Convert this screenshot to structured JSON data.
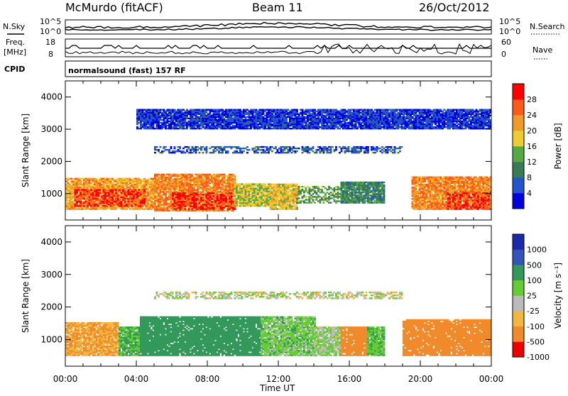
{
  "header": {
    "station": "McMurdo (fitACF)",
    "beam": "Beam 11",
    "date": "26/Oct/2012"
  },
  "top_panels": {
    "nsky_label": "N.Sky",
    "nsearch_label": "N.Search",
    "noise_ticks": [
      "10^5",
      "10^0"
    ],
    "freq_label_line1": "Freq.",
    "freq_label_line2": "[MHz]",
    "freq_ticks": [
      "18",
      "8"
    ],
    "nave_label": "Nave",
    "nave_ticks": [
      "60",
      "0"
    ],
    "cpid_label": "CPID",
    "cpid_text": "normalsound (fast) 157 RF"
  },
  "chart_data": [
    {
      "type": "heatmap",
      "title": "",
      "xlabel": "Time UT",
      "ylabel": "Slant Range [km]",
      "x_ticks": [
        "00:00",
        "04:00",
        "08:00",
        "12:00",
        "16:00",
        "20:00",
        "00:00"
      ],
      "y_ticks": [
        "1000",
        "2000",
        "3000",
        "4000"
      ],
      "xlim_hours": [
        0,
        24
      ],
      "ylim_km": [
        180,
        4500
      ],
      "colorbar": {
        "label": "Power [dB]",
        "ticks": [
          "28",
          "24",
          "20",
          "16",
          "12",
          "8",
          "4"
        ],
        "range": [
          0,
          30
        ],
        "colors": [
          "#0000dd",
          "#2255cc",
          "#3a7a55",
          "#55aa44",
          "#eecc33",
          "#f09a2a",
          "#ff5a1a",
          "#ff0000"
        ]
      },
      "bands": [
        {
          "t0": 0.0,
          "t1": 5.0,
          "r0": 500,
          "r1": 1450,
          "value": 20
        },
        {
          "t0": 0.5,
          "t1": 4.5,
          "r0": 600,
          "r1": 1100,
          "value": 27
        },
        {
          "t0": 5.0,
          "t1": 9.5,
          "r0": 450,
          "r1": 1600,
          "value": 22
        },
        {
          "t0": 6.0,
          "t1": 9.5,
          "r0": 500,
          "r1": 1000,
          "value": 28
        },
        {
          "t0": 9.5,
          "t1": 11.5,
          "r0": 600,
          "r1": 1300,
          "value": 16
        },
        {
          "t0": 11.5,
          "t1": 13.0,
          "r0": 500,
          "r1": 1300,
          "value": 18
        },
        {
          "t0": 13.0,
          "t1": 15.5,
          "r0": 700,
          "r1": 1200,
          "value": 12
        },
        {
          "t0": 15.5,
          "t1": 18.0,
          "r0": 700,
          "r1": 1350,
          "value": 10
        },
        {
          "t0": 19.5,
          "t1": 24.0,
          "r0": 500,
          "r1": 1500,
          "value": 22
        },
        {
          "t0": 21.5,
          "t1": 24.0,
          "r0": 500,
          "r1": 1000,
          "value": 27
        },
        {
          "t0": 5.0,
          "t1": 19.0,
          "r0": 2250,
          "r1": 2450,
          "value": 6
        },
        {
          "t0": 4.0,
          "t1": 24.0,
          "r0": 3000,
          "r1": 3600,
          "value": 4
        }
      ]
    },
    {
      "type": "heatmap",
      "title": "",
      "xlabel": "Time UT",
      "ylabel": "Slant Range [km]",
      "x_ticks": [
        "00:00",
        "04:00",
        "08:00",
        "12:00",
        "16:00",
        "20:00",
        "00:00"
      ],
      "y_ticks": [
        "1000",
        "2000",
        "3000",
        "4000"
      ],
      "xlim_hours": [
        0,
        24
      ],
      "ylim_km": [
        180,
        4500
      ],
      "colorbar": {
        "label": "Velocity [m s⁻¹]",
        "ticks": [
          "1000",
          "500",
          "100",
          "25",
          "-25",
          "-100",
          "-500",
          "-1000"
        ],
        "colors": [
          "#ee0000",
          "#f08a2a",
          "#f0b840",
          "#bbbbbb",
          "#66cc33",
          "#33995a",
          "#3355bb",
          "#1a2aaa"
        ]
      },
      "bands": [
        {
          "t0": 0.0,
          "t1": 3.0,
          "r0": 500,
          "r1": 1500,
          "value": -100
        },
        {
          "t0": 3.0,
          "t1": 4.2,
          "r0": 500,
          "r1": 1400,
          "value": 100
        },
        {
          "t0": 4.2,
          "t1": 11.0,
          "r0": 500,
          "r1": 1700,
          "value": 300
        },
        {
          "t0": 11.0,
          "t1": 14.0,
          "r0": 500,
          "r1": 1700,
          "value": 60
        },
        {
          "t0": 14.0,
          "t1": 15.5,
          "r0": 500,
          "r1": 1400,
          "value": 30
        },
        {
          "t0": 15.5,
          "t1": 17.0,
          "r0": 500,
          "r1": 1400,
          "value": -200
        },
        {
          "t0": 17.0,
          "t1": 18.0,
          "r0": 500,
          "r1": 1400,
          "value": 80
        },
        {
          "t0": 19.0,
          "t1": 24.0,
          "r0": 500,
          "r1": 1600,
          "value": -200
        },
        {
          "t0": 5.0,
          "t1": 19.0,
          "r0": 2250,
          "r1": 2450,
          "value": 0
        }
      ]
    }
  ]
}
